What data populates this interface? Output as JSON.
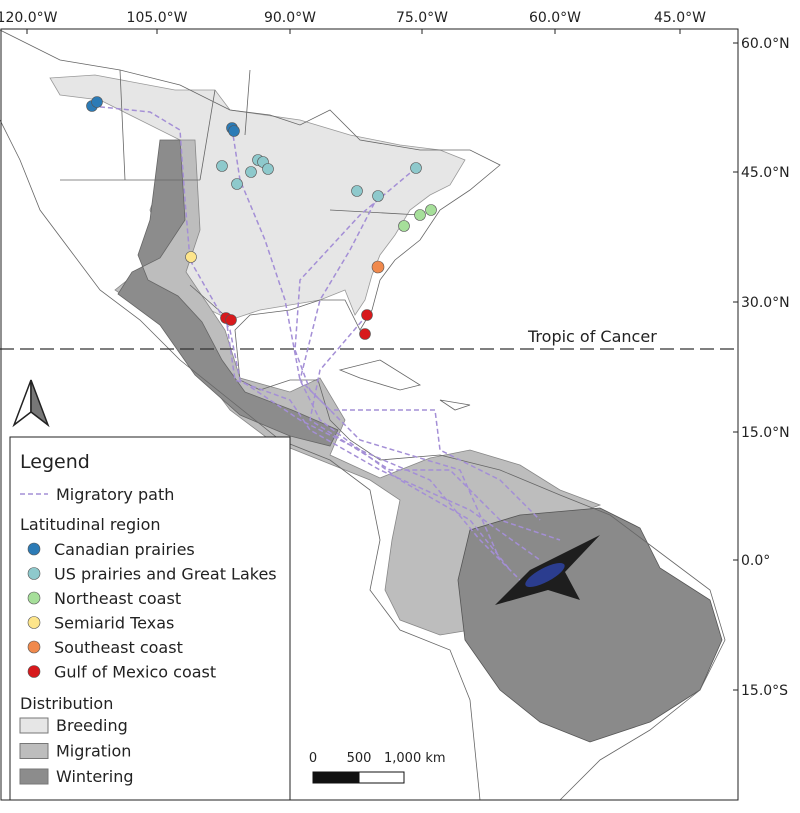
{
  "map": {
    "lon_labels": [
      "120.0°W",
      "105.0°W",
      "90.0°W",
      "75.0°W",
      "60.0°W",
      "45.0°W"
    ],
    "lat_labels": [
      "60.0°N",
      "45.0°N",
      "30.0°N",
      "15.0°N",
      "0.0°",
      "15.0°S"
    ],
    "tropic_label": "Tropic of Cancer",
    "legend": {
      "title": "Legend",
      "path_label": "Migratory path",
      "region_title": "Latitudinal region",
      "regions": [
        "Canadian prairies",
        "US prairies and Great Lakes",
        "Northeast coast",
        "Semiarid Texas",
        "Southeast coast",
        "Gulf of Mexico coast"
      ],
      "distribution_title": "Distribution",
      "distribution": [
        "Breeding",
        "Migration",
        "Wintering"
      ]
    },
    "scale": {
      "labels": [
        "0",
        "500",
        "1,000 km"
      ]
    }
  }
}
